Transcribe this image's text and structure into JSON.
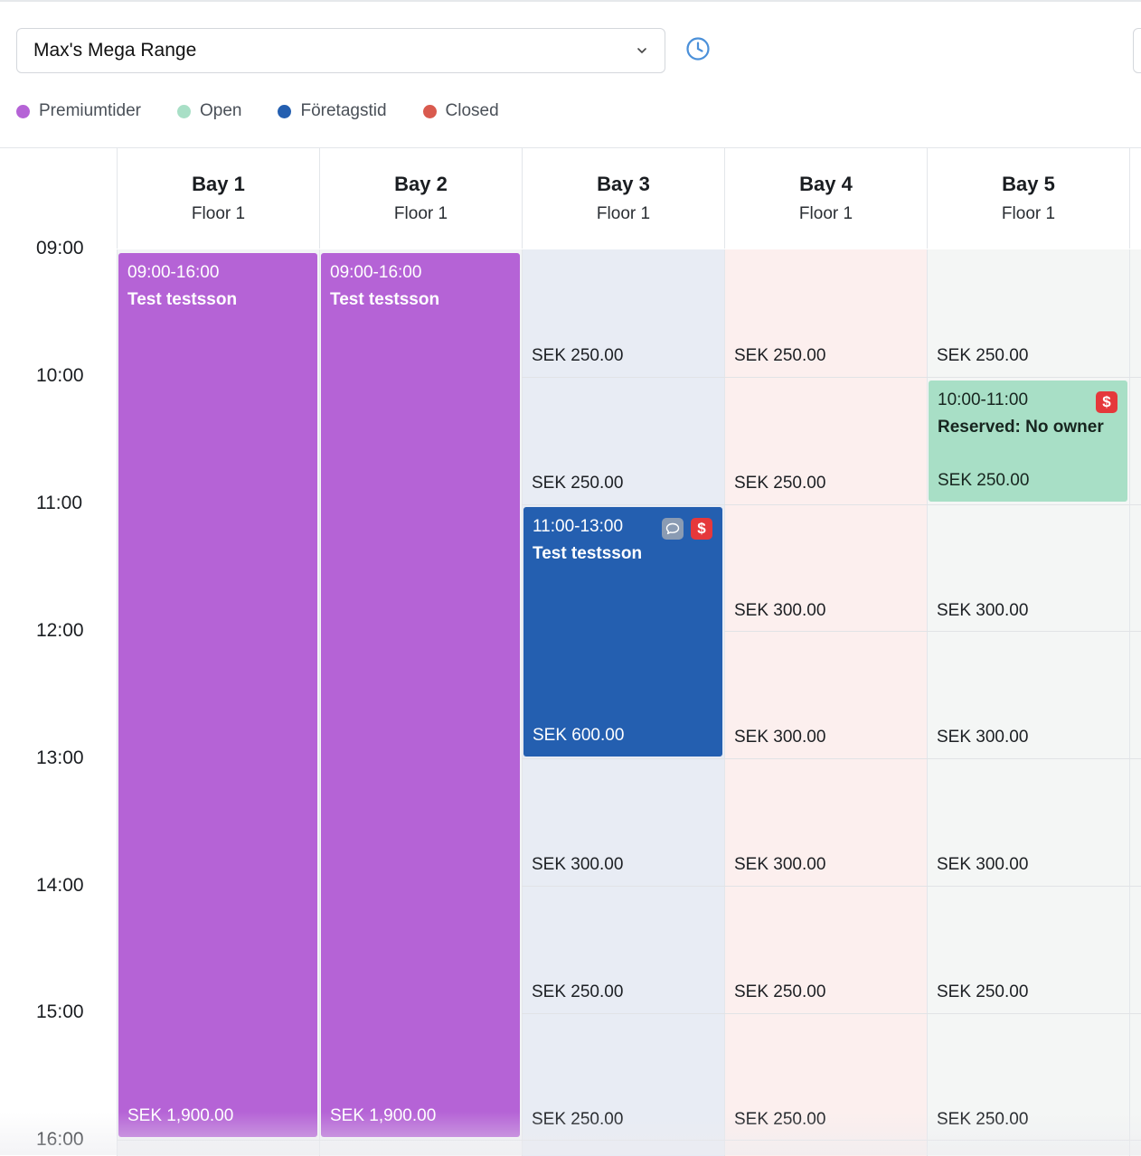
{
  "toolbar": {
    "venue_select_value": "Max's Mega Range",
    "clock_icon": "clock-icon"
  },
  "legend": [
    {
      "label": "Premiumtider",
      "color": "#b563d6"
    },
    {
      "label": "Open",
      "color": "#a8dfc6"
    },
    {
      "label": "Företagstid",
      "color": "#245fb0"
    },
    {
      "label": "Closed",
      "color": "#d95a4e"
    }
  ],
  "bays": [
    {
      "name": "Bay 1",
      "floor": "Floor 1"
    },
    {
      "name": "Bay 2",
      "floor": "Floor 1"
    },
    {
      "name": "Bay 3",
      "floor": "Floor 1"
    },
    {
      "name": "Bay 4",
      "floor": "Floor 1"
    },
    {
      "name": "Bay 5",
      "floor": "Floor 1"
    }
  ],
  "times": [
    "09:00",
    "10:00",
    "11:00",
    "12:00",
    "13:00",
    "14:00",
    "15:00",
    "16:00"
  ],
  "bookings": {
    "bay1": {
      "time": "09:00-16:00",
      "name": "Test testsson",
      "price": "SEK 1,900.00"
    },
    "bay2": {
      "time": "09:00-16:00",
      "name": "Test testsson",
      "price": "SEK 1,900.00"
    },
    "bay3": {
      "time": "11:00-13:00",
      "name": "Test testsson",
      "price": "SEK 600.00"
    },
    "bay5": {
      "time": "10:00-11:00",
      "name": "Reserved: No owner",
      "price": "SEK 250.00"
    }
  },
  "prices": {
    "bay3": [
      "SEK 250.00",
      "SEK 250.00",
      "SEK 300.00",
      "SEK 250.00",
      "SEK 250.00"
    ],
    "bay4": [
      "SEK 250.00",
      "SEK 250.00",
      "SEK 300.00",
      "SEK 300.00",
      "SEK 300.00",
      "SEK 250.00",
      "SEK 250.00"
    ],
    "bay5": [
      "SEK 250.00",
      "SEK 300.00",
      "SEK 300.00",
      "SEK 300.00",
      "SEK 250.00",
      "SEK 250.00"
    ]
  }
}
